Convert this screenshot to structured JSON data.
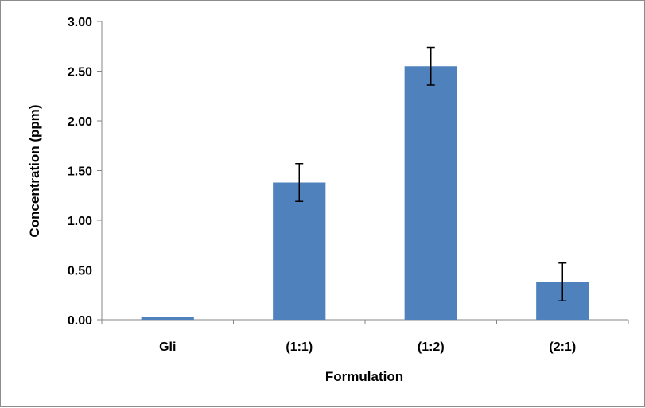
{
  "chart_data": {
    "type": "bar",
    "title": "",
    "xlabel": "Formulation",
    "ylabel": "Concentration (ppm)",
    "ylim": [
      0,
      3.0
    ],
    "yticks": [
      "0.00",
      "0.50",
      "1.00",
      "1.50",
      "2.00",
      "2.50",
      "3.00"
    ],
    "ytick_values": [
      0,
      0.5,
      1.0,
      1.5,
      2.0,
      2.5,
      3.0
    ],
    "categories": [
      "Gli",
      "(1:1)",
      "(1:2)",
      "(2:1)"
    ],
    "values": [
      0.03,
      1.38,
      2.55,
      0.38
    ],
    "error": [
      null,
      0.19,
      0.19,
      0.19
    ],
    "bar_color": "#4f81bd",
    "grid": false,
    "legend": "none"
  }
}
